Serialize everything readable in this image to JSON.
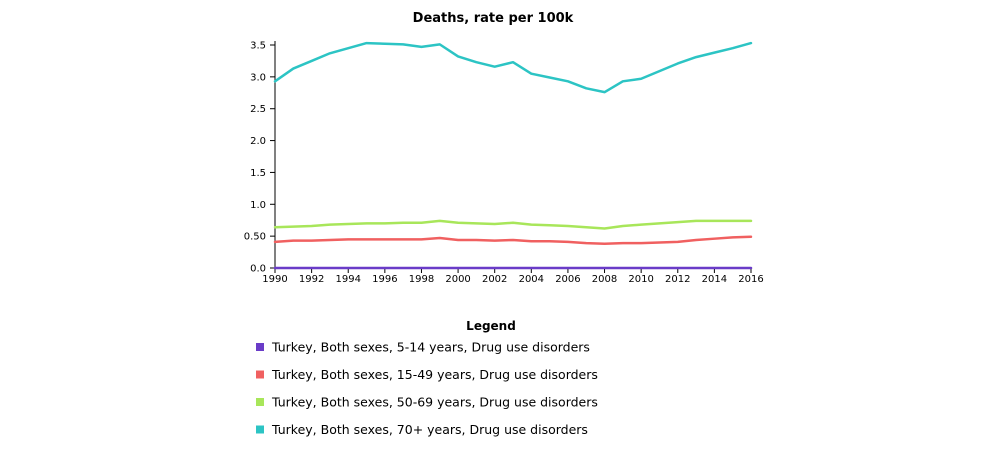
{
  "chart_data": {
    "type": "line",
    "title": "Deaths, rate per 100k",
    "xlabel": "",
    "ylabel": "",
    "x": [
      1990,
      1991,
      1992,
      1993,
      1994,
      1995,
      1996,
      1997,
      1998,
      1999,
      2000,
      2001,
      2002,
      2003,
      2004,
      2005,
      2006,
      2007,
      2008,
      2009,
      2010,
      2011,
      2012,
      2013,
      2014,
      2015,
      2016
    ],
    "x_ticks": [
      "1990",
      "1992",
      "1994",
      "1996",
      "1998",
      "2000",
      "2002",
      "2004",
      "2006",
      "2008",
      "2010",
      "2012",
      "2014",
      "2016"
    ],
    "y_ticks": [
      "0.0",
      "0.50",
      "1.0",
      "1.5",
      "2.0",
      "2.5",
      "3.0",
      "3.5"
    ],
    "ylim": [
      0,
      3.5
    ],
    "xlim": [
      1990,
      2016
    ],
    "grid": false,
    "legend_title": "Legend",
    "legend_position": "bottom",
    "series": [
      {
        "name": "Turkey, Both sexes, 5-14 years, Drug use disorders",
        "color": "#6a3cc8",
        "values": [
          0.0,
          0.0,
          0.0,
          0.0,
          0.0,
          0.0,
          0.0,
          0.0,
          0.0,
          0.0,
          0.0,
          0.0,
          0.0,
          0.0,
          0.0,
          0.0,
          0.0,
          0.0,
          0.0,
          0.0,
          0.0,
          0.0,
          0.0,
          0.0,
          0.0,
          0.0,
          0.0
        ]
      },
      {
        "name": "Turkey, Both sexes, 15-49 years, Drug use disorders",
        "color": "#f06060",
        "values": [
          0.41,
          0.43,
          0.43,
          0.44,
          0.45,
          0.45,
          0.45,
          0.45,
          0.45,
          0.47,
          0.44,
          0.44,
          0.43,
          0.44,
          0.42,
          0.42,
          0.41,
          0.39,
          0.38,
          0.39,
          0.39,
          0.4,
          0.41,
          0.44,
          0.46,
          0.48,
          0.49
        ]
      },
      {
        "name": "Turkey, Both sexes, 50-69 years, Drug use disorders",
        "color": "#a8e65a",
        "values": [
          0.64,
          0.65,
          0.66,
          0.68,
          0.69,
          0.7,
          0.7,
          0.71,
          0.71,
          0.74,
          0.71,
          0.7,
          0.69,
          0.71,
          0.68,
          0.67,
          0.66,
          0.64,
          0.62,
          0.66,
          0.68,
          0.7,
          0.72,
          0.74,
          0.74,
          0.74,
          0.74
        ]
      },
      {
        "name": "Turkey, Both sexes, 70+ years, Drug use disorders",
        "color": "#2cc4c4",
        "values": [
          2.93,
          3.13,
          3.25,
          3.37,
          3.45,
          3.53,
          3.52,
          3.51,
          3.47,
          3.51,
          3.32,
          3.23,
          3.16,
          3.23,
          3.05,
          2.99,
          2.93,
          2.82,
          2.76,
          2.93,
          2.97,
          3.09,
          3.21,
          3.31,
          3.38,
          3.45,
          3.53
        ]
      }
    ]
  }
}
